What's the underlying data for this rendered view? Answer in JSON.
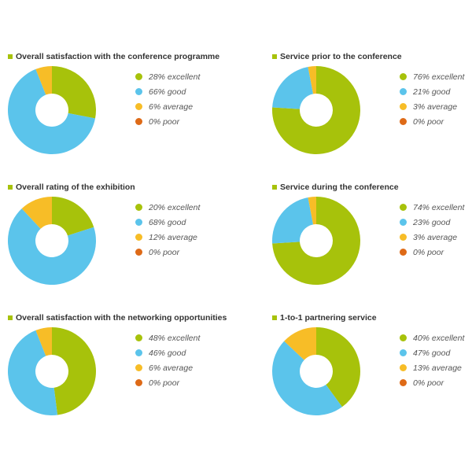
{
  "colors": {
    "excellent": "#a7c20b",
    "good": "#5bc4eb",
    "average": "#f7bd27",
    "poor": "#de6a17",
    "title_square": "#a7c20b"
  },
  "chart_data": [
    {
      "type": "pie",
      "title": "Overall satisfaction with the conference programme",
      "slices": [
        {
          "label": "excellent",
          "value": 28,
          "display": "28% excellent"
        },
        {
          "label": "good",
          "value": 66,
          "display": "66% good"
        },
        {
          "label": "average",
          "value": 6,
          "display": "6% average"
        },
        {
          "label": "poor",
          "value": 0,
          "display": "0% poor"
        }
      ]
    },
    {
      "type": "pie",
      "title": "Service prior to the conference",
      "slices": [
        {
          "label": "excellent",
          "value": 76,
          "display": "76% excellent"
        },
        {
          "label": "good",
          "value": 21,
          "display": "21% good"
        },
        {
          "label": "average",
          "value": 3,
          "display": "3% average"
        },
        {
          "label": "poor",
          "value": 0,
          "display": "0% poor"
        }
      ]
    },
    {
      "type": "pie",
      "title": "Overall rating of the exhibition",
      "slices": [
        {
          "label": "excellent",
          "value": 20,
          "display": "20% excellent"
        },
        {
          "label": "good",
          "value": 68,
          "display": "68% good"
        },
        {
          "label": "average",
          "value": 12,
          "display": "12% average"
        },
        {
          "label": "poor",
          "value": 0,
          "display": "0% poor"
        }
      ]
    },
    {
      "type": "pie",
      "title": "Service during the conference",
      "slices": [
        {
          "label": "excellent",
          "value": 74,
          "display": "74% excellent"
        },
        {
          "label": "good",
          "value": 23,
          "display": "23% good"
        },
        {
          "label": "average",
          "value": 3,
          "display": "3% average"
        },
        {
          "label": "poor",
          "value": 0,
          "display": "0% poor"
        }
      ]
    },
    {
      "type": "pie",
      "title": "Overall satisfaction with the networking opportunities",
      "slices": [
        {
          "label": "excellent",
          "value": 48,
          "display": "48% excellent"
        },
        {
          "label": "good",
          "value": 46,
          "display": "46% good"
        },
        {
          "label": "average",
          "value": 6,
          "display": "6% average"
        },
        {
          "label": "poor",
          "value": 0,
          "display": "0% poor"
        }
      ]
    },
    {
      "type": "pie",
      "title": "1-to-1 partnering service",
      "slices": [
        {
          "label": "excellent",
          "value": 40,
          "display": "40% excellent"
        },
        {
          "label": "good",
          "value": 47,
          "display": "47% good"
        },
        {
          "label": "average",
          "value": 13,
          "display": "13% average"
        },
        {
          "label": "poor",
          "value": 0,
          "display": "0% poor"
        }
      ]
    }
  ]
}
